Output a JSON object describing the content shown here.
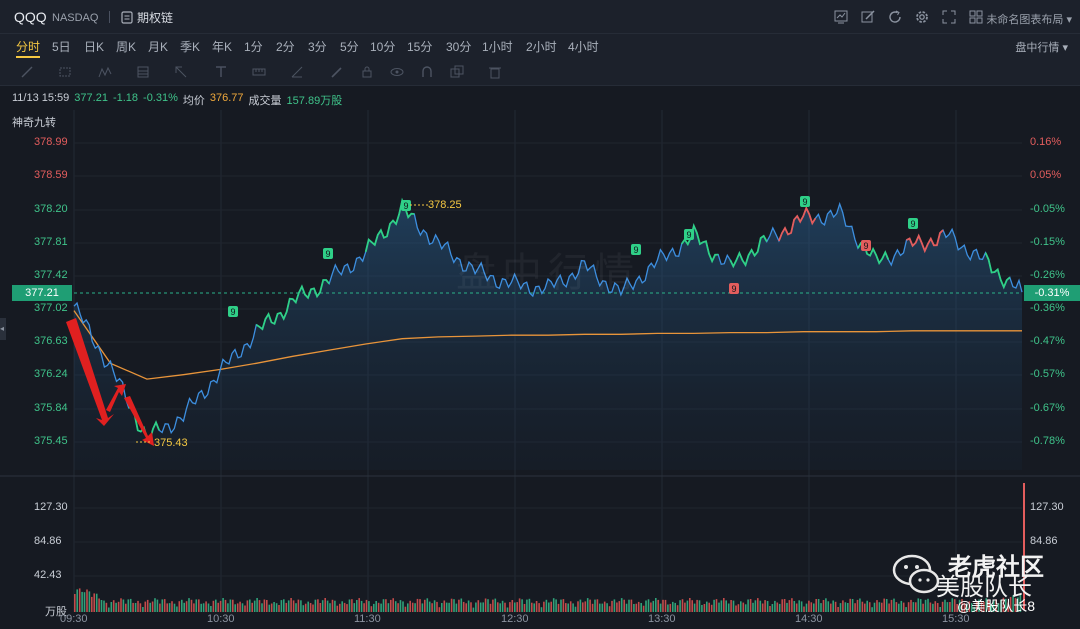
{
  "header": {
    "symbol": "QQQ",
    "exchange": "NASDAQ",
    "option_chain_label": "期权链",
    "layout_name": "未命名图表布局",
    "icons": [
      "chart-icon",
      "edit-icon",
      "refresh-icon",
      "settings-icon",
      "fullscreen-icon",
      "grid-layout-icon"
    ]
  },
  "periods": {
    "items": [
      "分时",
      "5日",
      "日K",
      "周K",
      "月K",
      "季K",
      "年K",
      "1分",
      "2分",
      "3分",
      "5分",
      "10分",
      "15分",
      "30分",
      "1小时",
      "2小时",
      "4小时"
    ],
    "active": "分时",
    "intraday_label": "盘中行情"
  },
  "info": {
    "datetime": "11/13 15:59",
    "price": "377.21",
    "change": "-1.18",
    "change_pct": "-0.31%",
    "avg_label": "均价",
    "avg_value": "376.77",
    "volume_label": "成交量",
    "volume_value": "157.89万股"
  },
  "indicator_label": "神奇九转",
  "y_axis_left": [
    "378.99",
    "378.59",
    "378.20",
    "377.81",
    "377.42",
    "377.02",
    "376.63",
    "376.24",
    "375.84",
    "375.45"
  ],
  "y_axis_right": [
    "0.16%",
    "0.05%",
    "-0.05%",
    "-0.15%",
    "-0.26%",
    "-0.36%",
    "-0.47%",
    "-0.57%",
    "-0.67%",
    "-0.78%"
  ],
  "current_price_tag": "377.21",
  "current_pct_tag": "-0.31%",
  "volume_axis_left": [
    "127.30",
    "84.86",
    "42.43"
  ],
  "volume_axis_right": [
    "127.30",
    "84.86"
  ],
  "volume_unit": "万股",
  "x_axis": [
    "09:30",
    "10:30",
    "11:30",
    "12:30",
    "13:30",
    "14:30",
    "15:30"
  ],
  "annotations": {
    "high": "378.25",
    "low": "375.43",
    "nine_label": "9"
  },
  "watermark": "盘中行情",
  "branding": {
    "line1": "老虎社区",
    "line2": "美股队长",
    "line3": "@美股队长8"
  },
  "colors": {
    "up": "#e35d5d",
    "down": "#3fc38a",
    "price_line": "#3d8fe0",
    "avg_line": "#e8943a",
    "accent": "#f5c842",
    "tag": "#1f9e74"
  },
  "chart_data": {
    "type": "line",
    "title": "",
    "x": [
      "09:30",
      "09:45",
      "10:00",
      "10:15",
      "10:30",
      "10:45",
      "11:00",
      "11:15",
      "11:30",
      "11:45",
      "12:00",
      "12:15",
      "12:30",
      "12:45",
      "13:00",
      "13:15",
      "13:30",
      "13:45",
      "14:00",
      "14:15",
      "14:30",
      "14:45",
      "15:00",
      "15:15",
      "15:30",
      "15:45",
      "15:59"
    ],
    "series": [
      {
        "values": [
          377.05,
          376.35,
          375.55,
          375.8,
          376.3,
          376.75,
          377.1,
          377.35,
          377.65,
          378.15,
          377.75,
          377.45,
          377.3,
          377.25,
          377.5,
          377.2,
          377.55,
          377.85,
          377.5,
          377.8,
          378.05,
          378.1,
          377.55,
          377.75,
          377.85,
          377.55,
          377.21
        ]
      },
      {
        "values": [
          377.0,
          376.4,
          376.22,
          376.27,
          376.33,
          376.4,
          376.48,
          376.55,
          376.62,
          376.68,
          376.7,
          376.71,
          376.72,
          376.72,
          376.73,
          376.73,
          376.74,
          376.74,
          376.75,
          376.75,
          376.76,
          376.76,
          376.76,
          376.77,
          376.77,
          376.77,
          376.77
        ]
      }
    ],
    "ylim": [
      375.3,
      379.1
    ],
    "xlabel": "",
    "ylabel": ""
  }
}
